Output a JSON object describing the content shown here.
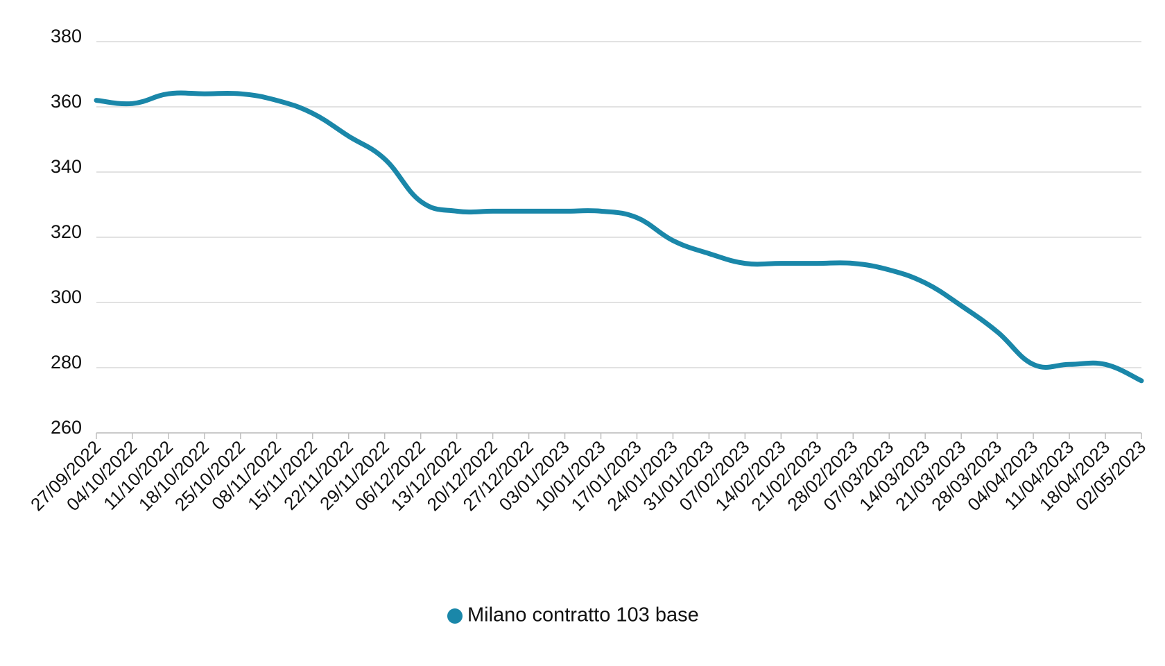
{
  "chart_data": {
    "type": "line",
    "categories": [
      "27/09/2022",
      "04/10/2022",
      "11/10/2022",
      "18/10/2022",
      "25/10/2022",
      "08/11/2022",
      "15/11/2022",
      "22/11/2022",
      "29/11/2022",
      "06/12/2022",
      "13/12/2022",
      "20/12/2022",
      "27/12/2022",
      "03/01/2023",
      "10/01/2023",
      "17/01/2023",
      "24/01/2023",
      "31/01/2023",
      "07/02/2023",
      "14/02/2023",
      "21/02/2023",
      "28/02/2023",
      "07/03/2023",
      "14/03/2023",
      "21/03/2023",
      "28/03/2023",
      "04/04/2023",
      "11/04/2023",
      "18/04/2023",
      "02/05/2023"
    ],
    "series": [
      {
        "name": "Milano contratto 103 base",
        "color": "#1a87a9",
        "values": [
          362,
          361,
          364,
          364,
          364,
          362,
          358,
          351,
          344,
          331,
          328,
          328,
          328,
          328,
          328,
          326,
          319,
          315,
          312,
          312,
          312,
          312,
          310,
          306,
          299,
          291,
          281,
          281,
          281,
          276
        ]
      }
    ],
    "ylim": [
      260,
      380
    ],
    "yticks": [
      260,
      280,
      300,
      320,
      340,
      360,
      380
    ],
    "grid": true,
    "legend": "bottom"
  }
}
